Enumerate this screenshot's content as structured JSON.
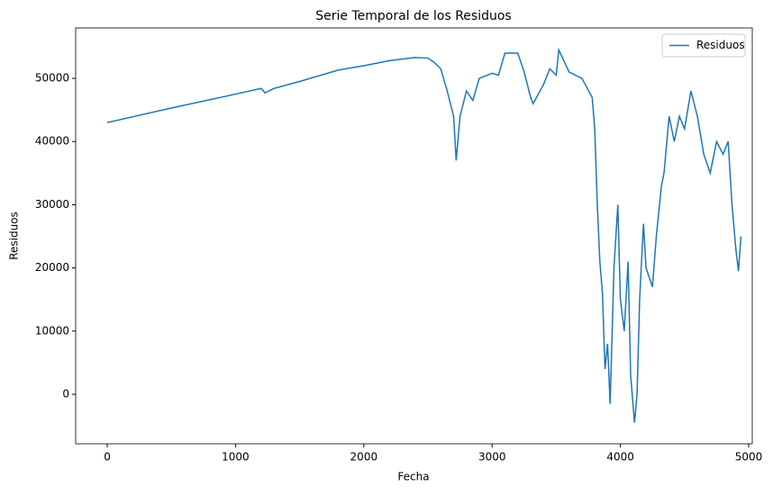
{
  "chart_data": {
    "type": "line",
    "title": "Serie Temporal de los Residuos",
    "x_label": "Fecha",
    "y_label": "Residuos",
    "x": [
      0,
      500,
      1000,
      1200,
      1230,
      1300,
      1500,
      1800,
      2000,
      2200,
      2400,
      2500,
      2550,
      2600,
      2650,
      2700,
      2720,
      2750,
      2800,
      2850,
      2900,
      3000,
      3050,
      3100,
      3200,
      3250,
      3300,
      3320,
      3400,
      3450,
      3500,
      3520,
      3600,
      3700,
      3780,
      3800,
      3820,
      3840,
      3860,
      3880,
      3900,
      3920,
      3950,
      3980,
      4000,
      4030,
      4060,
      4080,
      4110,
      4130,
      4150,
      4180,
      4200,
      4250,
      4280,
      4320,
      4340,
      4380,
      4420,
      4460,
      4500,
      4550,
      4600,
      4650,
      4700,
      4750,
      4800,
      4840,
      4870,
      4900,
      4920,
      4940
    ],
    "series": [
      {
        "name": "Residuos",
        "color": "#1f77b4",
        "values": [
          43000,
          45300,
          47500,
          48400,
          47700,
          48400,
          49500,
          51300,
          52000,
          52800,
          53300,
          53200,
          52500,
          51500,
          48000,
          44000,
          37000,
          44000,
          48000,
          46500,
          50000,
          50800,
          50500,
          54000,
          54000,
          51000,
          47000,
          46000,
          49000,
          51500,
          50500,
          54500,
          51000,
          50000,
          47000,
          42000,
          30000,
          21000,
          16000,
          4000,
          8000,
          -1500,
          20000,
          30000,
          15000,
          10000,
          21000,
          3000,
          -4500,
          0,
          15000,
          27000,
          20000,
          17000,
          25000,
          33000,
          35000,
          44000,
          40000,
          44000,
          42000,
          48000,
          44000,
          38000,
          35000,
          40000,
          38000,
          40000,
          30000,
          23000,
          19500,
          25000
        ]
      }
    ],
    "xlim": [
      -246,
      5028
    ],
    "ylim": [
      -7830,
      57980
    ],
    "xticks": [
      0,
      1000,
      2000,
      3000,
      4000,
      5000
    ],
    "yticks": [
      0,
      10000,
      20000,
      30000,
      40000,
      50000
    ],
    "legend": "upper right"
  }
}
